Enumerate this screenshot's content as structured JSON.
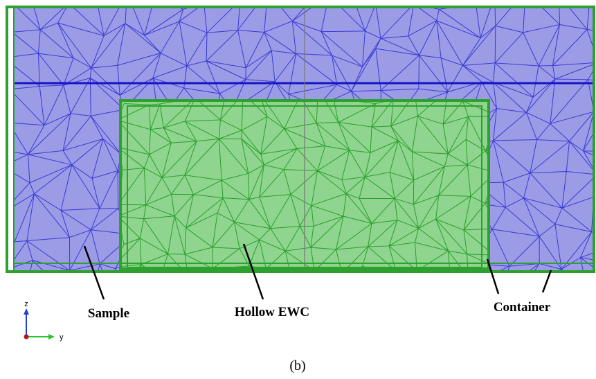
{
  "labels": {
    "sample": "Sample",
    "hollow_ewc": "Hollow EWC",
    "container": "Container"
  },
  "axes": {
    "z": "z",
    "y": "y"
  },
  "caption": "(b)"
}
